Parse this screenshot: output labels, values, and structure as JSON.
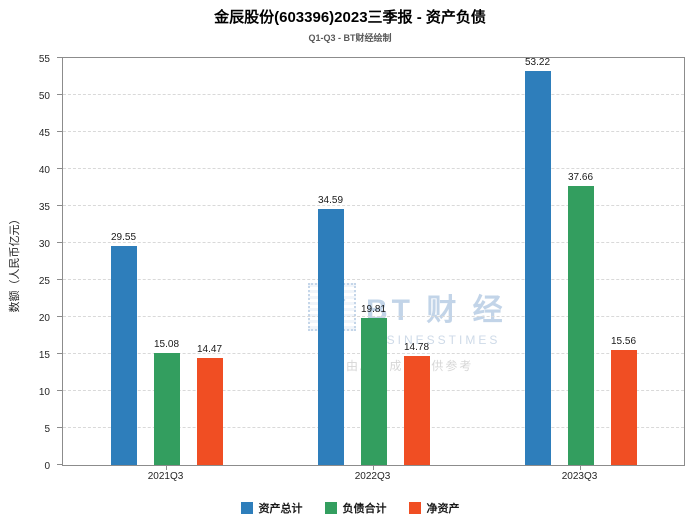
{
  "title": "金辰股份(603396)2023三季报 - 资产负债",
  "subtitle": "Q1-Q3 - BT财经绘制",
  "watermark": {
    "logo_text": "BT",
    "main_text": "BT 财 经",
    "sub_text": "BUSINESSTIMES",
    "disclaimer": "内容由AI生成，仅供参考"
  },
  "chart_data": {
    "type": "bar",
    "categories": [
      "2021Q3",
      "2022Q3",
      "2023Q3"
    ],
    "series": [
      {
        "name": "资产总计",
        "color": "#2e7ebb",
        "values": [
          29.55,
          34.59,
          53.22
        ]
      },
      {
        "name": "负债合计",
        "color": "#339e5f",
        "values": [
          15.08,
          19.81,
          37.66
        ]
      },
      {
        "name": "净资产",
        "color": "#f04e23",
        "values": [
          14.47,
          14.78,
          15.56
        ]
      }
    ],
    "title": "金辰股份(603396)2023三季报 - 资产负债",
    "xlabel": "",
    "ylabel": "数额（人民币亿元）",
    "ylim": [
      0,
      55
    ],
    "ytick_step": 5,
    "grid": "dashed-horizontal",
    "legend_position": "bottom"
  }
}
